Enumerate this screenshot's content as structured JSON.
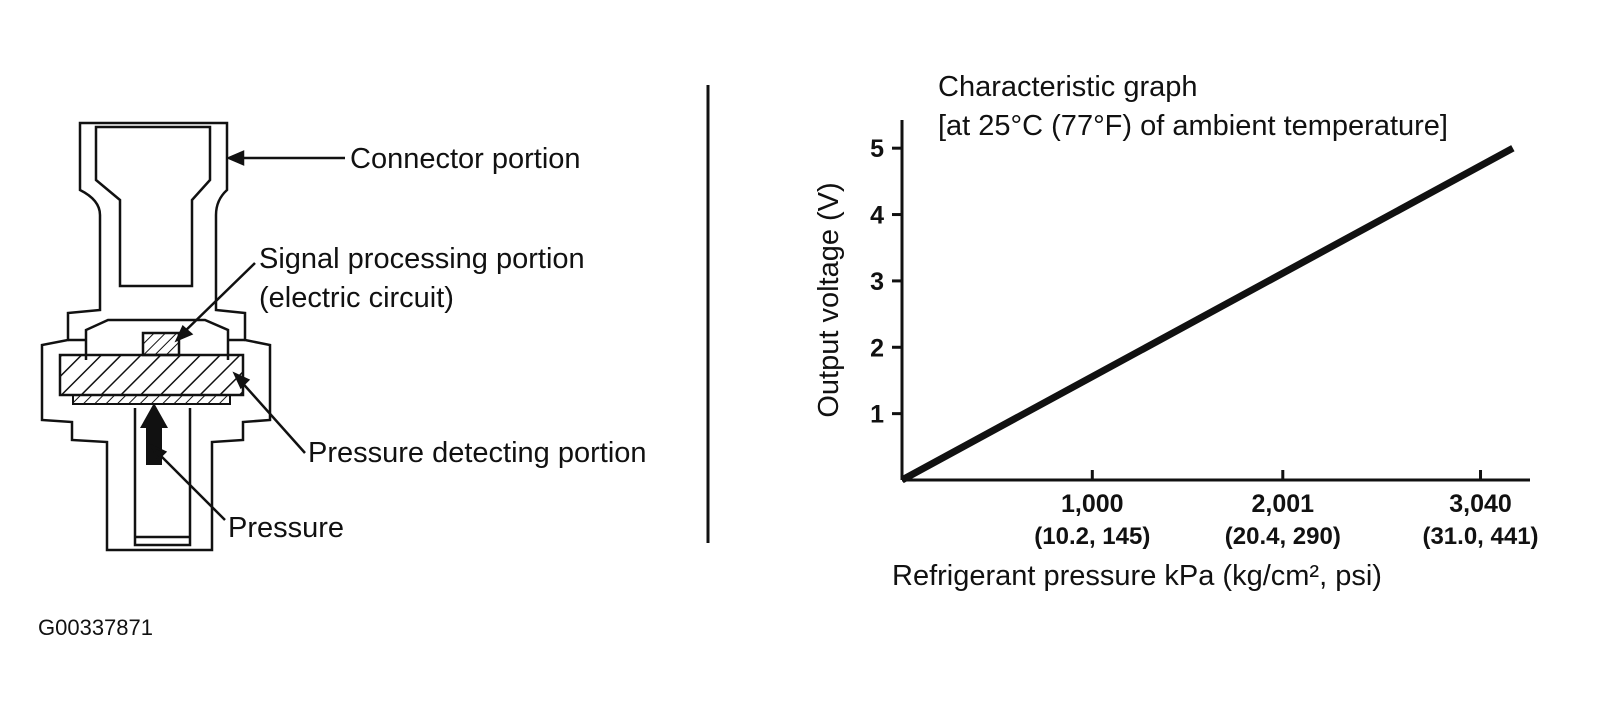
{
  "diagram": {
    "labels": {
      "connector": "Connector portion",
      "signal_line1": "Signal processing portion",
      "signal_line2": "(electric circuit)",
      "pressure_detecting": "Pressure detecting portion",
      "pressure": "Pressure"
    },
    "figure_code": "G00337871"
  },
  "chart_data": {
    "type": "line",
    "title_line1": "Characteristic graph",
    "title_line2": "[at 25°C (77°F) of ambient temperature]",
    "ylabel": "Output voltage (V)",
    "xlabel": "Refrigerant pressure kPa (kg/cm², psi)",
    "y_ticks": [
      "1",
      "2",
      "3",
      "4",
      "5"
    ],
    "x_ticks": [
      {
        "value": 1000,
        "label": "1,000",
        "sub": "(10.2, 145)"
      },
      {
        "value": 2001,
        "label": "2,001",
        "sub": "(20.4, 290)"
      },
      {
        "value": 3040,
        "label": "3,040",
        "sub": "(31.0, 441)"
      }
    ],
    "xlim": [
      0,
      3300
    ],
    "ylim": [
      0,
      5.5
    ],
    "series": [
      {
        "x": [
          0,
          3210
        ],
        "y": [
          0,
          5
        ]
      }
    ],
    "grid": false
  }
}
